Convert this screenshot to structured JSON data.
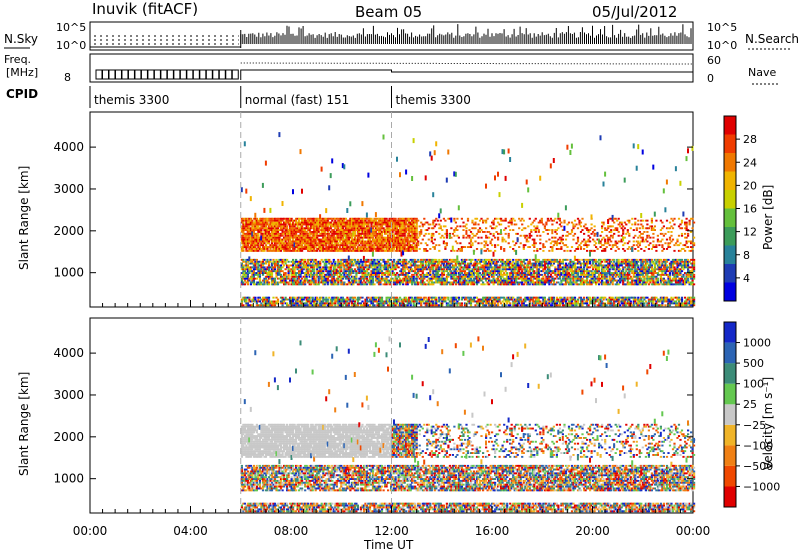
{
  "header": {
    "station": "Inuvik (fitACF)",
    "beam": "Beam 05",
    "date": "05/Jul/2012"
  },
  "nsky_panel": {
    "left_label": "N.Sky",
    "left_ticks": [
      "10^5",
      "10^0"
    ],
    "right_ticks": [
      "10^5",
      "10^0"
    ],
    "right_label": "N.Search"
  },
  "freq_panel": {
    "left_label_1": "Freq.",
    "left_label_2": "[MHz]",
    "left_tick": "8",
    "right_ticks": [
      "60",
      "0"
    ],
    "right_label": "Nave"
  },
  "cpid_panel": {
    "label": "CPID",
    "segments": [
      {
        "name": "themis 3300",
        "start_h": 0,
        "end_h": 6
      },
      {
        "name": "normal (fast) 151",
        "start_h": 6,
        "end_h": 12
      },
      {
        "name": "themis 3300",
        "start_h": 12,
        "end_h": 24
      }
    ]
  },
  "time_axis": {
    "label": "Time UT",
    "ticks": [
      "00:00",
      "04:00",
      "08:00",
      "12:00",
      "16:00",
      "20:00",
      "00:00"
    ],
    "range_h": [
      0,
      24
    ]
  },
  "power_panel": {
    "ylabel": "Slant Range [km]",
    "yticks": [
      "4000",
      "3000",
      "2000",
      "1000"
    ],
    "colorbar_label": "Power [dB]",
    "colorbar_ticks": [
      "28",
      "24",
      "20",
      "16",
      "12",
      "8",
      "4"
    ],
    "colors": [
      "#0000e0",
      "#1e3cb4",
      "#28829a",
      "#3c9c5a",
      "#64c03c",
      "#c8d000",
      "#f0b400",
      "#f07800",
      "#f03c00",
      "#e00000"
    ]
  },
  "velocity_panel": {
    "ylabel": "Slant Range [km]",
    "yticks": [
      "4000",
      "3000",
      "2000",
      "1000"
    ],
    "colorbar_label": "Velocity [m s⁻¹]",
    "colorbar_ticks": [
      "1000",
      "500",
      "100",
      "25",
      "−25",
      "−100",
      "−500",
      "−1000"
    ],
    "colors": [
      "#1428c8",
      "#2c64b4",
      "#3c8c78",
      "#64c850",
      "#c8c8c8",
      "#f0b428",
      "#f08014",
      "#f04800",
      "#e00000"
    ]
  },
  "chart_data": {
    "type": "heatmap",
    "title": "Inuvik (fitACF) Beam 05 05/Jul/2012",
    "xlabel": "Time UT",
    "ylabel": "Slant Range [km]",
    "xlim_hours": [
      0,
      24
    ],
    "ylim_km": [
      180,
      4600
    ],
    "series": [
      {
        "name": "Power [dB]",
        "range": [
          0,
          30
        ],
        "echo_bands_km": [
          [
            1500,
            2300
          ],
          [
            700,
            1300
          ],
          [
            200,
            400
          ]
        ],
        "start_h": 6
      },
      {
        "name": "Velocity [m s⁻¹]",
        "range": [
          -1000,
          1000
        ],
        "echo_bands_km": [
          [
            1500,
            2300
          ],
          [
            700,
            1300
          ],
          [
            200,
            400
          ]
        ],
        "start_h": 6
      }
    ],
    "event_lines_h": [
      6,
      12
    ]
  }
}
